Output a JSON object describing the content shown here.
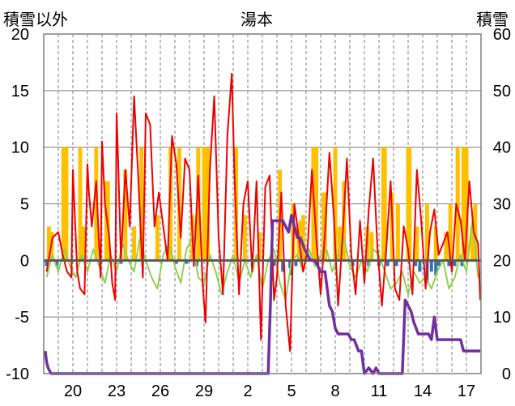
{
  "chart_data": {
    "type": "line",
    "title": "湯本",
    "ylabel_left": "積雪以外",
    "ylabel_right": "積雪",
    "ylim_left": [
      -10,
      20
    ],
    "ylim_right": [
      0,
      60
    ],
    "yticks_left": [
      "20",
      "15",
      "10",
      "5",
      "0",
      "-5",
      "-10"
    ],
    "yticks_right": [
      "60",
      "50",
      "40",
      "30",
      "20",
      "10",
      "0"
    ],
    "xlim": [
      18,
      48
    ],
    "xticks": [
      {
        "label": "20",
        "x": 20
      },
      {
        "label": "23",
        "x": 23
      },
      {
        "label": "26",
        "x": 26
      },
      {
        "label": "29",
        "x": 29
      },
      {
        "label": "2",
        "x": 32
      },
      {
        "label": "5",
        "x": 35
      },
      {
        "label": "8",
        "x": 38
      },
      {
        "label": "11",
        "x": 41
      },
      {
        "label": "14",
        "x": 44
      },
      {
        "label": "17",
        "x": 47
      }
    ],
    "grid": true,
    "colors": {
      "temperature": "#ee0000",
      "dewpoint": "#92d050",
      "precipitation": "#ffc000",
      "negative_bars": "#2e75b6",
      "snow_depth": "#7030a0",
      "zero_line": "#595959",
      "grid": "#7f7f7f",
      "frame": "#7f7f7f"
    },
    "series": [
      {
        "key": "temperature",
        "axis": "left",
        "x": [
          18.2,
          18.6,
          19.0,
          19.3,
          19.6,
          19.9,
          20.0,
          20.2,
          20.3,
          20.5,
          20.8,
          21.0,
          21.1,
          21.3,
          21.6,
          21.9,
          22.0,
          22.2,
          22.5,
          22.7,
          22.9,
          23.0,
          23.1,
          23.3,
          23.6,
          23.9,
          24.2,
          24.5,
          24.8,
          25.0,
          25.3,
          25.6,
          25.9,
          26.2,
          26.5,
          26.8,
          27.1,
          27.4,
          27.7,
          28.0,
          28.3,
          28.6,
          28.9,
          29.1,
          29.4,
          29.7,
          30.0,
          30.3,
          30.6,
          30.9,
          31.1,
          31.4,
          31.7,
          32.0,
          32.3,
          32.6,
          32.9,
          33.2,
          33.5,
          33.8,
          34.0,
          34.3,
          34.6,
          34.9,
          35.2,
          35.5,
          35.8,
          36.1,
          36.4,
          36.7,
          37.0,
          37.3,
          37.6,
          37.9,
          38.2,
          38.5,
          38.8,
          39.1,
          39.4,
          39.7,
          40.0,
          40.3,
          40.6,
          40.9,
          41.2,
          41.5,
          41.8,
          42.1,
          42.4,
          42.7,
          43.0,
          43.3,
          43.6,
          43.9,
          44.2,
          44.5,
          44.8,
          45.1,
          45.4,
          45.7,
          46.0,
          46.3,
          46.6,
          46.9,
          47.2,
          47.5,
          47.8,
          47.95
        ],
        "values": [
          -1.0,
          2.0,
          2.5,
          0.5,
          -1.0,
          -1.5,
          8.0,
          2.0,
          -1.0,
          -2.5,
          -3.0,
          8.5,
          6.0,
          3.0,
          7.0,
          -1.5,
          10.5,
          5.0,
          2.0,
          -2.0,
          -3.5,
          13.0,
          9.0,
          0.0,
          8.0,
          3.0,
          14.5,
          7.0,
          -1.5,
          13.0,
          12.0,
          3.0,
          6.0,
          3.0,
          0.0,
          11.0,
          8.5,
          2.0,
          9.0,
          8.0,
          -0.5,
          7.5,
          -2.0,
          -5.5,
          8.0,
          14.5,
          2.0,
          -3.0,
          11.0,
          16.5,
          7.0,
          -3.0,
          5.0,
          7.0,
          -1.0,
          7.0,
          -7.0,
          6.5,
          7.5,
          -3.5,
          -1.5,
          6.0,
          -4.0,
          -8.0,
          5.0,
          2.0,
          -1.0,
          1.0,
          8.0,
          2.0,
          -3.0,
          2.5,
          9.5,
          4.0,
          -4.0,
          2.0,
          9.0,
          0.5,
          -3.0,
          3.5,
          -2.0,
          4.5,
          9.0,
          1.0,
          -4.0,
          1.0,
          7.0,
          -2.5,
          -3.5,
          3.0,
          1.0,
          -3.0,
          8.0,
          3.5,
          -2.5,
          2.5,
          4.5,
          0.5,
          1.5,
          2.5,
          -1.0,
          5.0,
          3.5,
          0.0,
          7.0,
          2.5,
          1.5,
          -3.5
        ]
      },
      {
        "key": "dewpoint",
        "axis": "left",
        "x": [
          18.2,
          18.6,
          19.0,
          19.4,
          19.8,
          20.2,
          20.6,
          21.0,
          21.4,
          21.8,
          22.2,
          22.6,
          23.0,
          23.4,
          23.8,
          24.2,
          24.6,
          25.0,
          25.4,
          25.8,
          26.2,
          26.6,
          27.0,
          27.4,
          27.8,
          28.2,
          28.6,
          29.0,
          29.4,
          29.8,
          30.2,
          30.6,
          31.0,
          31.4,
          31.8,
          32.2,
          32.6,
          33.0,
          33.4,
          33.8,
          34.2,
          34.6,
          35.0,
          35.4,
          35.8,
          36.2,
          36.6,
          37.0,
          37.4,
          37.8,
          38.2,
          38.6,
          39.0,
          39.4,
          39.8,
          40.2,
          40.6,
          41.0,
          41.4,
          41.8,
          42.2,
          42.6,
          43.0,
          43.4,
          43.8,
          44.2,
          44.6,
          45.0,
          45.4,
          45.8,
          46.2,
          46.6,
          47.0,
          47.4,
          47.8,
          47.95
        ],
        "values": [
          -1.5,
          0.5,
          -1.0,
          1.0,
          -0.5,
          -1.5,
          0.5,
          -1.0,
          1.0,
          -0.5,
          -2.0,
          0.5,
          -1.0,
          1.5,
          0.0,
          -1.0,
          2.0,
          0.0,
          -1.5,
          -2.5,
          0.5,
          1.5,
          -0.5,
          -2.0,
          1.0,
          2.0,
          -1.5,
          -2.0,
          0.5,
          -1.0,
          -3.0,
          -1.0,
          0.5,
          -2.0,
          0.0,
          -1.5,
          0.5,
          -2.5,
          0.0,
          1.0,
          -2.0,
          -3.5,
          0.0,
          0.5,
          -1.0,
          1.0,
          -0.5,
          0.5,
          1.0,
          -1.0,
          0.5,
          2.0,
          -0.5,
          -1.5,
          0.0,
          -1.0,
          1.0,
          0.5,
          -1.0,
          -2.5,
          -2.0,
          -1.0,
          -3.0,
          -1.0,
          -2.0,
          -1.5,
          -2.5,
          -1.0,
          0.0,
          -2.5,
          -1.5,
          0.5,
          -1.0,
          3.5,
          -1.5,
          -1.0
        ]
      },
      {
        "key": "precipitation",
        "axis": "left",
        "type": "bar",
        "x": [
          18.35,
          18.55,
          19.35,
          19.45,
          19.55,
          20.5,
          20.7,
          21.6,
          22.3,
          22.4,
          23.6,
          24.2,
          24.7,
          25.8,
          26.7,
          27.3,
          28.2,
          28.6,
          29.0,
          29.1,
          29.25,
          31.2,
          31.8,
          32.8,
          34.2,
          35.1,
          35.5,
          35.6,
          35.8,
          36.5,
          36.6,
          36.7,
          37.2,
          37.3,
          38.0,
          38.3,
          38.6,
          40.2,
          40.5,
          41.3,
          41.4,
          41.9,
          42.3,
          43.0,
          43.1,
          43.6,
          44.3,
          44.9,
          45.6,
          45.9,
          46.4,
          46.8,
          46.9,
          47.0,
          47.4,
          47.6
        ],
        "values": [
          3.0,
          2.5,
          10.0,
          10.0,
          10.0,
          10.0,
          3.0,
          10.0,
          7.0,
          7.0,
          8.0,
          3.0,
          10.0,
          4.0,
          10.0,
          10.0,
          4.0,
          10.0,
          10.0,
          10.0,
          10.0,
          10.0,
          4.0,
          2.5,
          8.0,
          5.0,
          3.0,
          3.5,
          4.0,
          10.0,
          10.0,
          10.0,
          6.0,
          6.0,
          10.0,
          3.0,
          7.0,
          3.0,
          2.5,
          10.0,
          10.0,
          6.0,
          5.0,
          10.0,
          10.0,
          3.0,
          5.0,
          3.0,
          2.5,
          5.0,
          10.0,
          10.0,
          10.0,
          10.0,
          3.0,
          5.0
        ]
      },
      {
        "key": "negative_bars",
        "axis": "left",
        "type": "bar",
        "x": [
          18.2,
          18.9,
          23.3,
          27.1,
          27.8,
          28.5,
          33.8,
          34.4,
          34.9,
          35.0,
          35.3,
          39.2,
          40.3,
          41.0,
          41.6,
          42.2,
          43.5,
          43.8,
          44.3,
          44.6,
          44.9,
          45.1,
          45.8,
          46.2,
          46.7
        ],
        "values": [
          -0.5,
          -0.5,
          -0.3,
          -0.3,
          -0.3,
          -0.5,
          -0.5,
          -1.0,
          -0.7,
          -1.3,
          -0.5,
          -0.5,
          -0.5,
          -0.5,
          -0.5,
          -0.5,
          -0.5,
          -1.0,
          -2.0,
          -1.0,
          -1.3,
          -0.5,
          -0.5,
          -0.5,
          -0.5
        ]
      },
      {
        "key": "snow_depth",
        "axis": "right",
        "x": [
          18.1,
          18.2,
          18.3,
          18.5,
          33.4,
          33.55,
          33.7,
          34.0,
          34.4,
          34.8,
          35.0,
          35.4,
          35.6,
          35.9,
          36.3,
          36.6,
          37.0,
          37.3,
          37.6,
          37.8,
          38.0,
          38.2,
          38.5,
          38.9,
          39.1,
          39.3,
          39.6,
          39.8,
          40.0,
          40.3,
          40.6,
          40.8,
          41.0,
          41.4,
          41.7,
          42.0,
          42.2,
          42.4,
          42.6,
          42.8,
          43.2,
          43.4,
          43.7,
          43.9,
          44.1,
          44.4,
          44.6,
          44.8,
          45.0,
          45.2,
          45.6,
          46.0,
          46.3,
          46.6,
          46.8,
          47.0,
          47.2,
          47.5,
          47.95
        ],
        "values": [
          4,
          2,
          1,
          0,
          0,
          12,
          27,
          27,
          27,
          25,
          28,
          24,
          24,
          22,
          20,
          20,
          18,
          18,
          12,
          11,
          8,
          7,
          7,
          7,
          6,
          6,
          4,
          4,
          0,
          1,
          0,
          1,
          0,
          0,
          0,
          0,
          0,
          0,
          0,
          13,
          11,
          9,
          7,
          7,
          7,
          7,
          6,
          10,
          6,
          6,
          6,
          6,
          6,
          6,
          4,
          4,
          4,
          4,
          4
        ]
      }
    ]
  }
}
